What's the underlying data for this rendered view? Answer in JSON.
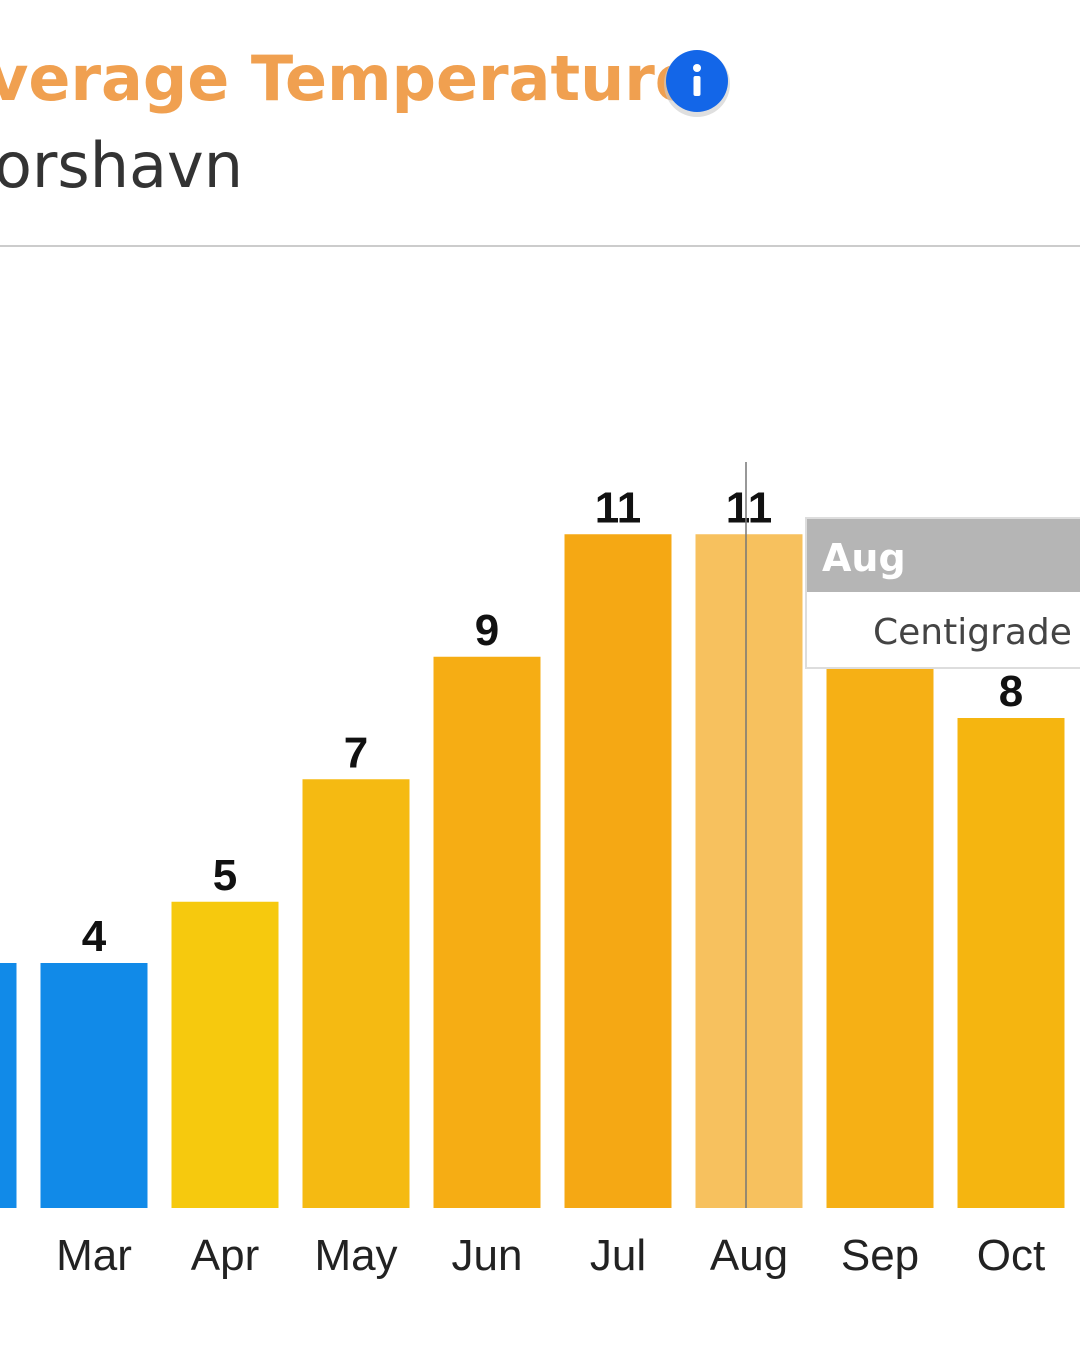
{
  "chart_data": {
    "type": "bar",
    "title": "verage Temperature",
    "subtitle": "orshavn",
    "categories": [
      null,
      "Mar",
      "Apr",
      "May",
      "Jun",
      "Jul",
      "Aug",
      "Sep",
      "Oct"
    ],
    "values": [
      4,
      4,
      5,
      7,
      9,
      11,
      11,
      9,
      8
    ],
    "colors": [
      "#118ae8",
      "#118ae8",
      "#f6c90e",
      "#f5ba12",
      "#f6ad14",
      "#f5a814",
      "#f7c15e",
      "#f6b015",
      "#f5b510"
    ],
    "tooltip_label": "Centigrade"
  }
}
